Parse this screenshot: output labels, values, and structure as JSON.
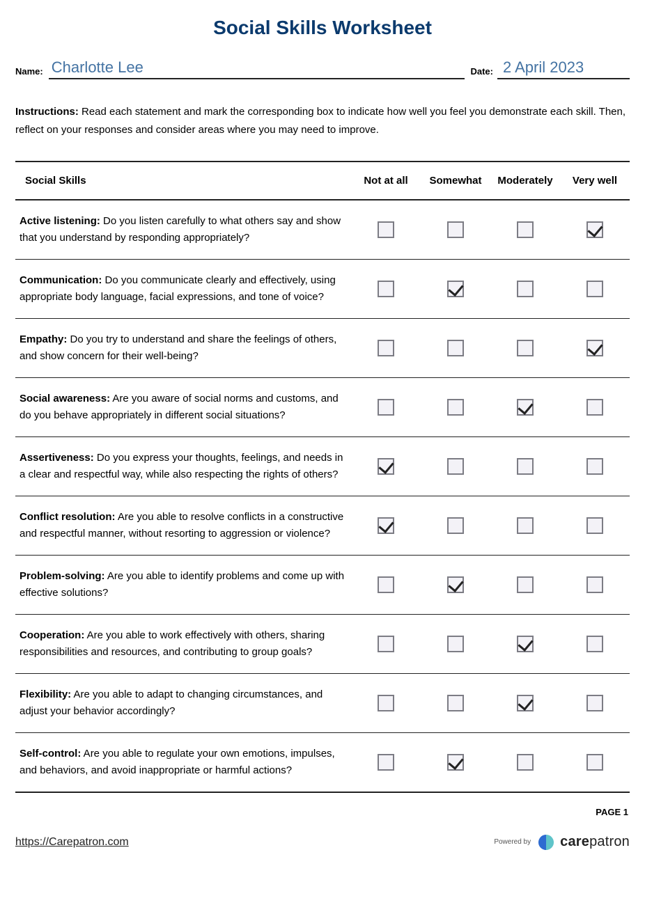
{
  "title": "Social Skills Worksheet",
  "fields": {
    "name_label": "Name:",
    "name_value": "Charlotte Lee",
    "date_label": "Date:",
    "date_value": "2 April 2023"
  },
  "instructions_label": "Instructions:",
  "instructions_text": " Read each statement and mark the corresponding box to indicate how well you feel you demonstrate each skill. Then, reflect on your responses and consider areas where you may need to improve.",
  "columns": {
    "skill": "Social Skills",
    "c1": "Not at all",
    "c2": "Somewhat",
    "c3": "Moderately",
    "c4": "Very well"
  },
  "rows": [
    {
      "label": "Active listening:",
      "desc": " Do you listen carefully to what others say and show that you understand by responding appropriately?",
      "checked": 4
    },
    {
      "label": "Communication:",
      "desc": " Do you communicate clearly and effectively, using appropriate body language, facial expressions, and tone of voice?",
      "checked": 2
    },
    {
      "label": "Empathy:",
      "desc": " Do you try to understand and share the feelings of others, and show concern for their well-being?",
      "checked": 4
    },
    {
      "label": "Social awareness:",
      "desc": " Are you aware of social norms and customs, and do you behave appropriately in different social situations?",
      "checked": 3
    },
    {
      "label": "Assertiveness:",
      "desc": " Do you express your thoughts, feelings, and needs in a clear and respectful way, while also respecting the rights of others?",
      "checked": 1
    },
    {
      "label": "Conflict resolution:",
      "desc": " Are you able to resolve conflicts in a constructive and respectful manner, without resorting to aggression or violence?",
      "checked": 1
    },
    {
      "label": "Problem-solving:",
      "desc": " Are you able to identify problems and come up with effective solutions?",
      "checked": 2
    },
    {
      "label": "Cooperation:",
      "desc": " Are you able to work effectively with others, sharing responsibilities and resources, and contributing to group goals?",
      "checked": 3
    },
    {
      "label": "Flexibility:",
      "desc": " Are you able to adapt to changing circumstances, and adjust your behavior accordingly?",
      "checked": 3
    },
    {
      "label": "Self-control:",
      "desc": " Are you able to regulate your own emotions, impulses, and behaviors, and avoid inappropriate or harmful actions?",
      "checked": 2
    }
  ],
  "page_label": "PAGE 1",
  "footer": {
    "url": "https://Carepatron.com",
    "powered_by": "Powered by",
    "brand_bold": "care",
    "brand_rest": "patron"
  },
  "colors": {
    "title": "#0b3a6d",
    "field_value": "#4473a3",
    "checkbox_border": "#7c7c84",
    "checkbox_bg": "#f3f2f7",
    "logo_blue": "#2d6bd1",
    "logo_teal": "#5fc4c9"
  }
}
